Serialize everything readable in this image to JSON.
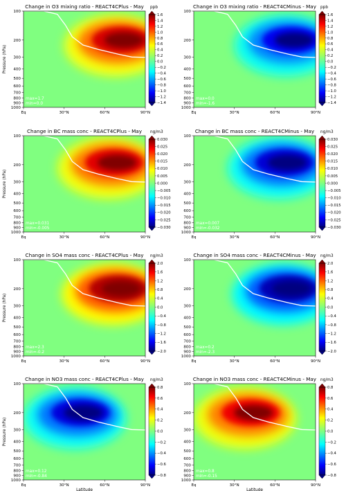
{
  "chart_data": [
    {
      "type": "heatmap",
      "title": "Change in O3 mixing ratio - REACT4CPlus - May",
      "ylabel": "Pressure (hPa)",
      "xlabel": "",
      "x_ticks": [
        "Eq",
        "30°N",
        "60°N",
        "90°N"
      ],
      "y_ticks": [
        "100",
        "200",
        "300",
        "400",
        "500",
        "600",
        "700",
        "800",
        "900",
        "1000"
      ],
      "colorbar_unit": "ppb",
      "colorbar_ticks": [
        "1.6",
        "1.4",
        "1.2",
        "1.0",
        "0.8",
        "0.6",
        "0.4",
        "0.2",
        "0.0",
        "−0.2",
        "−0.4",
        "−0.6",
        "−0.8",
        "−1.0",
        "−1.2",
        "−1.4"
      ],
      "vmin": -1.6,
      "vmax": 1.6,
      "max_label": "max=1.7",
      "min_label": "min=0.0",
      "anomaly": {
        "sign": 1,
        "center_lat": 70,
        "center_p": 200,
        "strength": 1.7
      }
    },
    {
      "type": "heatmap",
      "title": "Change in O3 mixing ratio - REACT4CMinus - May",
      "ylabel": "",
      "xlabel": "",
      "x_ticks": [
        "Eq",
        "30°N",
        "60°N",
        "90°N"
      ],
      "y_ticks": [
        "100",
        "200",
        "300",
        "400",
        "500",
        "600",
        "700",
        "800",
        "900",
        "1000"
      ],
      "colorbar_unit": "ppb",
      "colorbar_ticks": [
        "1.6",
        "1.4",
        "1.2",
        "1.0",
        "0.8",
        "0.6",
        "0.4",
        "0.2",
        "0.0",
        "−0.2",
        "−0.4",
        "−0.6",
        "−0.8",
        "−1.0",
        "−1.2",
        "−1.4"
      ],
      "vmin": -1.6,
      "vmax": 1.6,
      "max_label": "max=0.0",
      "min_label": "min=-1.6",
      "anomaly": {
        "sign": -1,
        "center_lat": 70,
        "center_p": 200,
        "strength": 1.6
      }
    },
    {
      "type": "heatmap",
      "title": "Change in BC mass conc - REACT4CPlus - May",
      "ylabel": "Pressure (hPa)",
      "xlabel": "",
      "x_ticks": [
        "Eq",
        "30°N",
        "60°N",
        "90°N"
      ],
      "y_ticks": [
        "100",
        "200",
        "300",
        "400",
        "500",
        "600",
        "700",
        "800",
        "900",
        "1000"
      ],
      "colorbar_unit": "ng/m3",
      "colorbar_ticks": [
        "0.030",
        "0.025",
        "0.020",
        "0.015",
        "0.010",
        "0.005",
        "0.000",
        "−0.005",
        "−0.010",
        "−0.015",
        "−0.020",
        "−0.025",
        "−0.030"
      ],
      "vmin": -0.03,
      "vmax": 0.03,
      "max_label": "max=0.031",
      "min_label": "min=-0.005",
      "anomaly": {
        "sign": 1,
        "center_lat": 65,
        "center_p": 190,
        "strength": 0.031
      }
    },
    {
      "type": "heatmap",
      "title": "Change in BC mass conc - REACT4CMinus - May",
      "ylabel": "",
      "xlabel": "",
      "x_ticks": [
        "Eq",
        "30°N",
        "60°N",
        "90°N"
      ],
      "y_ticks": [
        "100",
        "200",
        "300",
        "400",
        "500",
        "600",
        "700",
        "800",
        "900",
        "1000"
      ],
      "colorbar_unit": "ng/m3",
      "colorbar_ticks": [
        "0.030",
        "0.025",
        "0.020",
        "0.015",
        "0.010",
        "0.005",
        "0.000",
        "−0.005",
        "−0.010",
        "−0.015",
        "−0.020",
        "−0.025",
        "−0.030"
      ],
      "vmin": -0.03,
      "vmax": 0.03,
      "max_label": "max=0.007",
      "min_label": "min=-0.032",
      "anomaly": {
        "sign": -1,
        "center_lat": 65,
        "center_p": 190,
        "strength": 0.032
      }
    },
    {
      "type": "heatmap",
      "title": "Change in SO4 mass conc - REACT4CPlus - May",
      "ylabel": "Pressure (hPa)",
      "xlabel": "",
      "x_ticks": [
        "Eq",
        "30°N",
        "60°N",
        "90°N"
      ],
      "y_ticks": [
        "100",
        "200",
        "300",
        "400",
        "500",
        "600",
        "700",
        "800",
        "900",
        "1000"
      ],
      "colorbar_unit": "ng/m3",
      "colorbar_ticks": [
        "2.0",
        "1.6",
        "1.2",
        "0.8",
        "0.4",
        "0.0",
        "−0.4",
        "−0.8",
        "−1.2",
        "−1.6",
        "−2.0"
      ],
      "vmin": -2.0,
      "vmax": 2.0,
      "max_label": "max=2.3",
      "min_label": "min=-0.2",
      "anomaly": {
        "sign": 1,
        "center_lat": 68,
        "center_p": 200,
        "strength": 2.3
      }
    },
    {
      "type": "heatmap",
      "title": "Change in SO4 mass conc - REACT4CMinus - May",
      "ylabel": "",
      "xlabel": "",
      "x_ticks": [
        "Eq",
        "30°N",
        "60°N",
        "90°N"
      ],
      "y_ticks": [
        "100",
        "200",
        "300",
        "400",
        "500",
        "600",
        "700",
        "800",
        "900",
        "1000"
      ],
      "colorbar_unit": "ng/m3",
      "colorbar_ticks": [
        "2.0",
        "1.6",
        "1.2",
        "0.8",
        "0.4",
        "0.0",
        "−0.4",
        "−0.8",
        "−1.2",
        "−1.6",
        "−2.0"
      ],
      "vmin": -2.0,
      "vmax": 2.0,
      "max_label": "max=0.2",
      "min_label": "min=-2.3",
      "anomaly": {
        "sign": -1,
        "center_lat": 68,
        "center_p": 200,
        "strength": 2.3
      }
    },
    {
      "type": "heatmap",
      "title": "Change in NO3 mass conc - REACT4CPlus - May",
      "ylabel": "Pressure (hPa)",
      "xlabel": "Latitude",
      "x_ticks": [
        "Eq",
        "30°N",
        "60°N",
        "90°N"
      ],
      "y_ticks": [
        "100",
        "200",
        "300",
        "400",
        "500",
        "600",
        "700",
        "800",
        "900",
        "1000"
      ],
      "colorbar_unit": "ng/m3",
      "colorbar_ticks": [
        "0.8",
        "0.6",
        "0.4",
        "0.2",
        "0.0",
        "−0.2",
        "−0.4",
        "−0.6",
        "−0.8"
      ],
      "vmin": -0.8,
      "vmax": 0.8,
      "max_label": "max=0.12",
      "min_label": "min=-0.84",
      "anomaly": {
        "sign": -1,
        "center_lat": 40,
        "center_p": 200,
        "strength": 0.84
      }
    },
    {
      "type": "heatmap",
      "title": "Change in NO3 mass conc - REACT4CMinus - May",
      "ylabel": "",
      "xlabel": "Latitude",
      "x_ticks": [
        "Eq",
        "30°N",
        "60°N",
        "90°N"
      ],
      "y_ticks": [
        "100",
        "200",
        "300",
        "400",
        "500",
        "600",
        "700",
        "800",
        "900",
        "1000"
      ],
      "colorbar_unit": "ng/m3",
      "colorbar_ticks": [
        "0.8",
        "0.6",
        "0.4",
        "0.2",
        "0.0",
        "−0.2",
        "−0.4",
        "−0.6",
        "−0.8"
      ],
      "vmin": -0.8,
      "vmax": 0.8,
      "max_label": "max=0.8",
      "min_label": "min=-0.15",
      "anomaly": {
        "sign": 1,
        "center_lat": 40,
        "center_p": 200,
        "strength": 0.8
      }
    }
  ]
}
